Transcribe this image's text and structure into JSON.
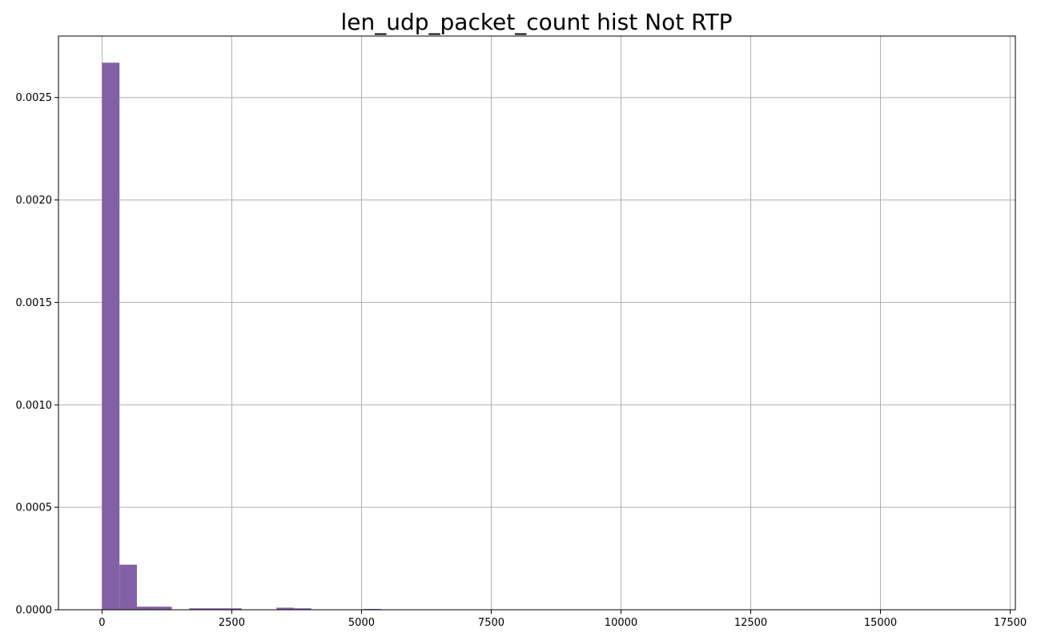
{
  "colors": {
    "bar": "#8360a6",
    "grid": "#b0b0b0",
    "axis": "#000000",
    "background": "#ffffff"
  },
  "chart_data": {
    "type": "bar",
    "title": "len_udp_packet_count hist Not RTP",
    "xlabel": "",
    "ylabel": "",
    "xlim": [
      -840,
      17600
    ],
    "ylim": [
      0,
      0.0028
    ],
    "grid": true,
    "legend": "none",
    "x_ticks": [
      0,
      2500,
      5000,
      7500,
      10000,
      12500,
      15000,
      17500
    ],
    "x_tick_labels": [
      "0",
      "2500",
      "5000",
      "7500",
      "10000",
      "12500",
      "15000",
      "17500"
    ],
    "y_ticks": [
      0,
      0.0005,
      0.001,
      0.0015,
      0.002,
      0.0025
    ],
    "y_tick_labels": [
      "0.0000",
      "0.0005",
      "0.0010",
      "0.0015",
      "0.0020",
      "0.0025"
    ],
    "bin_width": 336,
    "bins": [
      {
        "x0": 0,
        "x1": 336,
        "value": 0.00267
      },
      {
        "x0": 336,
        "x1": 672,
        "value": 0.00022
      },
      {
        "x0": 672,
        "x1": 1008,
        "value": 1.5e-05
      },
      {
        "x0": 1008,
        "x1": 1344,
        "value": 1.5e-05
      },
      {
        "x0": 1680,
        "x1": 2016,
        "value": 7e-06
      },
      {
        "x0": 2016,
        "x1": 2352,
        "value": 7e-06
      },
      {
        "x0": 2352,
        "x1": 2688,
        "value": 7e-06
      },
      {
        "x0": 3360,
        "x1": 3696,
        "value": 1e-05
      },
      {
        "x0": 3696,
        "x1": 4032,
        "value": 7e-06
      },
      {
        "x0": 5040,
        "x1": 5376,
        "value": 4e-06
      }
    ]
  }
}
